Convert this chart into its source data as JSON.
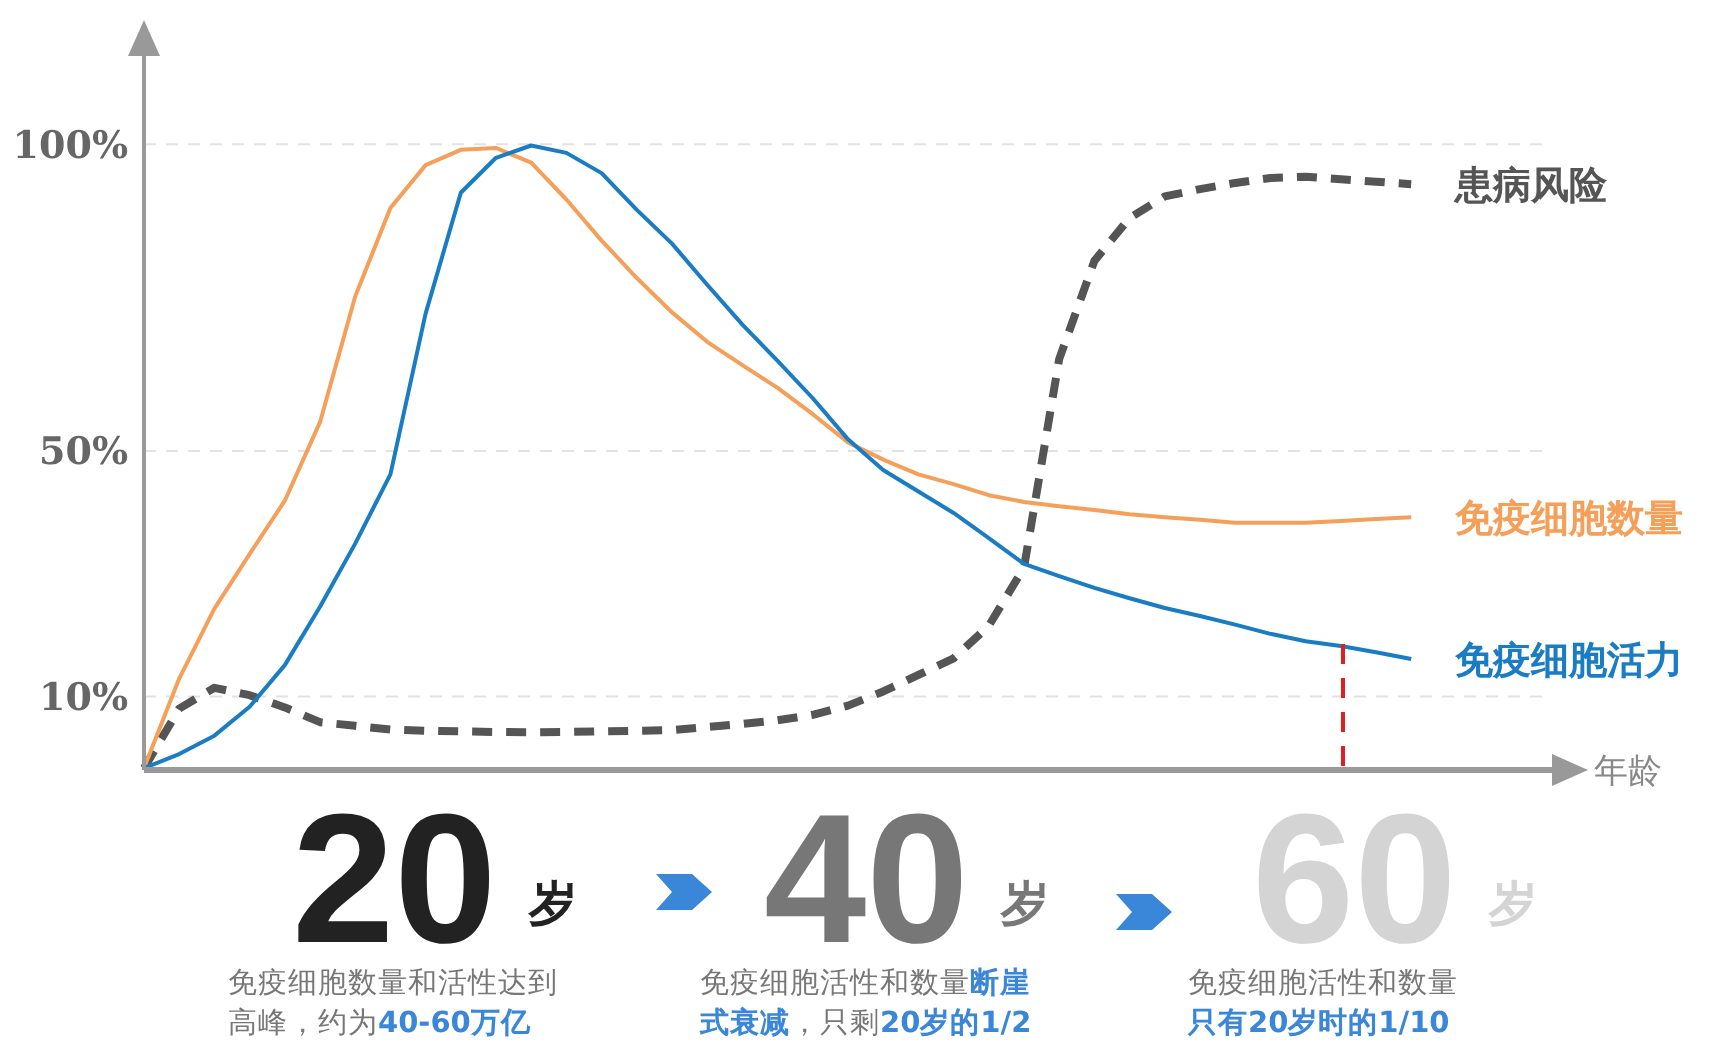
{
  "chart_data": {
    "type": "line",
    "xlabel": "年龄",
    "categories": [
      null,
      null,
      null,
      null,
      null,
      null,
      null,
      null,
      null,
      null,
      null,
      null,
      null,
      null,
      null,
      null,
      null,
      null,
      null,
      null,
      null,
      null,
      null,
      null,
      null,
      null,
      null,
      null,
      null,
      null,
      null,
      null,
      null,
      null,
      null,
      null,
      null,
      null,
      null,
      null,
      null
    ],
    "ylim": [
      -2,
      117
    ],
    "yticks": [
      {
        "value": 10,
        "label": "10%"
      },
      {
        "value": 50,
        "label": "50%"
      },
      {
        "value": 100,
        "label": "100%"
      }
    ],
    "grid": "y",
    "tick_labels": "y",
    "marker": "none",
    "series": [
      {
        "name": "患病风险",
        "color": "#555555",
        "line_style": "dashed",
        "values": [
          -1.7,
          8,
          11.4,
          10.2,
          8.2,
          5.8,
          5.2,
          4.6,
          4.4,
          4.3,
          4.2,
          4.15,
          4.2,
          4.3,
          4.4,
          4.5,
          5.0,
          5.5,
          6.1,
          7.0,
          8.5,
          10.8,
          13.5,
          16.2,
          21.5,
          31,
          65,
          81,
          88,
          91.5,
          92.7,
          93.7,
          94.5,
          94.7,
          94.3,
          93.9,
          93.5,
          null,
          null,
          null,
          null
        ]
      },
      {
        "name": "免疫细胞数量",
        "color": "#f5a05a",
        "line_style": "solid",
        "values": [
          -1.7,
          12.9,
          24.3,
          33.2,
          41.9,
          54.7,
          75.2,
          89.6,
          96.6,
          99.1,
          99.4,
          97.0,
          91.0,
          84.3,
          78.2,
          72.6,
          67.8,
          64.0,
          60.3,
          56.0,
          51.4,
          48.6,
          46.2,
          44.6,
          42.8,
          41.7,
          41.0,
          40.4,
          39.7,
          39.2,
          38.8,
          38.3,
          38.3,
          38.3,
          38.6,
          38.9,
          39.2,
          null,
          null,
          null,
          null
        ]
      },
      {
        "name": "免疫细胞活力",
        "color": "#1a7cc2",
        "line_style": "solid",
        "values": [
          -1.7,
          0.6,
          3.6,
          8.3,
          15.1,
          24.6,
          34.9,
          46.2,
          72.4,
          92.1,
          97.8,
          99.8,
          98.6,
          95.3,
          89.3,
          83.8,
          77.1,
          70.6,
          64.7,
          58.6,
          51.9,
          46.9,
          43.4,
          39.9,
          35.8,
          31.6,
          29.6,
          27.7,
          26.0,
          24.4,
          23.1,
          21.7,
          20.2,
          19.0,
          18.2,
          17.2,
          16.1,
          null,
          null,
          null,
          null
        ]
      }
    ],
    "annotations": [
      "20",
      "岁",
      "免疫细胞数量和活性达到高峰，约为",
      "40-60万亿",
      "40",
      "岁",
      "免疫细胞活性和数量",
      "断崖式衰减",
      "，只剩",
      "20岁的1/2",
      "60",
      "岁",
      "免疫细胞活性和数量",
      "只有20岁时的1/10"
    ]
  }
}
